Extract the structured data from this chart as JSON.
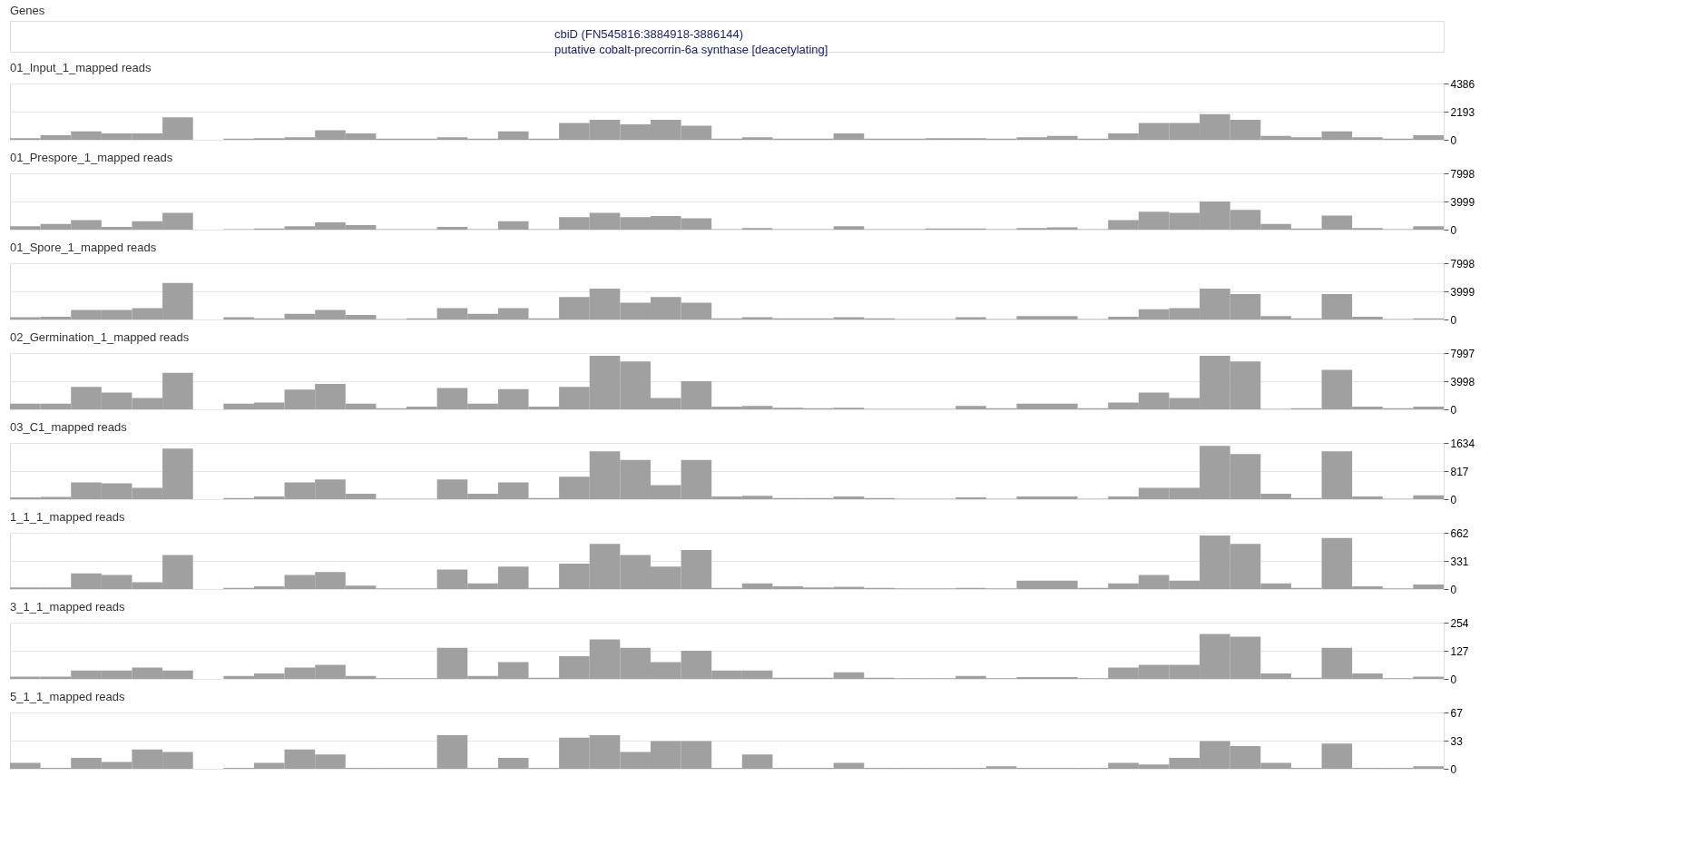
{
  "chart_data": [
    {
      "type": "other",
      "title": "Genes",
      "annotations": [
        "cbiD (FN545816:3884918-3886144)",
        "putative cobalt-precorrin-6a synthase [deacetylating]"
      ]
    },
    {
      "type": "bar",
      "title": "01_Input_1_mapped reads",
      "color": "#a0a0a0",
      "ylim": [
        0,
        4386
      ],
      "yticks": [
        0,
        2193,
        4386
      ],
      "grid": "y",
      "tick_labels": "y",
      "values": [
        130,
        350,
        650,
        500,
        500,
        1750,
        0,
        80,
        130,
        200,
        750,
        500,
        80,
        80,
        200,
        80,
        650,
        80,
        1300,
        1550,
        1200,
        1550,
        1100,
        80,
        200,
        80,
        80,
        500,
        80,
        80,
        130,
        130,
        80,
        200,
        300,
        80,
        500,
        1300,
        1300,
        2000,
        1550,
        300,
        200,
        650,
        200,
        80,
        350
      ]
    },
    {
      "type": "bar",
      "title": "01_Prespore_1_mapped reads",
      "color": "#a0a0a0",
      "ylim": [
        0,
        7998
      ],
      "yticks": [
        0,
        3999,
        7998
      ],
      "grid": "y",
      "tick_labels": "y",
      "values": [
        480,
        800,
        1360,
        400,
        1200,
        2400,
        0,
        80,
        160,
        480,
        1040,
        640,
        80,
        80,
        400,
        80,
        1200,
        80,
        1760,
        2400,
        1760,
        1920,
        1600,
        80,
        240,
        80,
        80,
        480,
        80,
        80,
        160,
        160,
        80,
        240,
        320,
        80,
        1360,
        2560,
        2400,
        4000,
        2800,
        800,
        160,
        2000,
        240,
        80,
        480
      ]
    },
    {
      "type": "bar",
      "title": "01_Spore_1_mapped reads",
      "color": "#a0a0a0",
      "ylim": [
        0,
        7998
      ],
      "yticks": [
        0,
        3999,
        7998
      ],
      "grid": "y",
      "tick_labels": "y",
      "values": [
        320,
        400,
        1360,
        1360,
        1600,
        5200,
        0,
        320,
        160,
        800,
        1360,
        640,
        80,
        160,
        1600,
        800,
        1600,
        160,
        3200,
        4400,
        2400,
        3200,
        2400,
        160,
        320,
        160,
        160,
        320,
        160,
        80,
        80,
        320,
        80,
        480,
        480,
        80,
        400,
        1440,
        1600,
        4400,
        3600,
        480,
        160,
        3600,
        400,
        80,
        160
      ]
    },
    {
      "type": "bar",
      "title": "02_Germination_1_mapped reads",
      "color": "#a0a0a0",
      "ylim": [
        0,
        7997
      ],
      "yticks": [
        0,
        3998,
        7997
      ],
      "grid": "y",
      "tick_labels": "y",
      "values": [
        800,
        800,
        3200,
        2400,
        1600,
        5200,
        0,
        800,
        960,
        2800,
        3600,
        800,
        160,
        400,
        3040,
        800,
        2880,
        400,
        3200,
        7600,
        6800,
        1600,
        4000,
        400,
        480,
        240,
        160,
        240,
        80,
        80,
        80,
        480,
        160,
        800,
        800,
        160,
        960,
        2400,
        1600,
        7600,
        6800,
        80,
        160,
        5600,
        400,
        160,
        400
      ]
    },
    {
      "type": "bar",
      "title": "03_C1_mapped reads",
      "color": "#a0a0a0",
      "ylim": [
        0,
        1634
      ],
      "yticks": [
        0,
        817,
        1634
      ],
      "grid": "y",
      "tick_labels": "y",
      "values": [
        50,
        65,
        490,
        460,
        330,
        1470,
        0,
        33,
        80,
        490,
        570,
        160,
        16,
        16,
        570,
        160,
        490,
        33,
        650,
        1390,
        1140,
        410,
        1140,
        80,
        100,
        33,
        33,
        80,
        33,
        16,
        16,
        50,
        16,
        80,
        80,
        16,
        80,
        330,
        330,
        1550,
        1310,
        160,
        33,
        1390,
        80,
        16,
        110
      ]
    },
    {
      "type": "bar",
      "title": "1_1_1_mapped reads",
      "color": "#a0a0a0",
      "ylim": [
        0,
        662
      ],
      "yticks": [
        0,
        331,
        662
      ],
      "grid": "y",
      "tick_labels": "y",
      "values": [
        20,
        20,
        185,
        165,
        80,
        400,
        0,
        13,
        33,
        165,
        200,
        40,
        7,
        7,
        230,
        66,
        265,
        13,
        300,
        530,
        400,
        265,
        460,
        13,
        66,
        33,
        20,
        26,
        13,
        7,
        7,
        13,
        7,
        100,
        100,
        13,
        66,
        165,
        100,
        630,
        530,
        66,
        13,
        600,
        33,
        7,
        53
      ]
    },
    {
      "type": "bar",
      "title": "3_1_1_mapped reads",
      "color": "#a0a0a0",
      "ylim": [
        0,
        254
      ],
      "yticks": [
        0,
        127,
        254
      ],
      "grid": "y",
      "tick_labels": "y",
      "values": [
        10,
        10,
        38,
        38,
        51,
        38,
        0,
        13,
        25,
        51,
        64,
        13,
        3,
        3,
        140,
        13,
        76,
        5,
        102,
        178,
        140,
        76,
        127,
        38,
        38,
        5,
        5,
        30,
        5,
        3,
        3,
        13,
        3,
        8,
        8,
        3,
        51,
        64,
        64,
        203,
        190,
        25,
        5,
        140,
        25,
        3,
        10
      ]
    },
    {
      "type": "bar",
      "title": "5_1_1_mapped reads",
      "color": "#a0a0a0",
      "ylim": [
        0,
        67
      ],
      "yticks": [
        0,
        33,
        67
      ],
      "grid": "y",
      "tick_labels": "y",
      "values": [
        7,
        1,
        13,
        8,
        23,
        20,
        0,
        1,
        7,
        23,
        17,
        1,
        1,
        1,
        40,
        1,
        13,
        1,
        37,
        40,
        20,
        33,
        33,
        1,
        17,
        1,
        1,
        7,
        1,
        1,
        1,
        1,
        3,
        1,
        1,
        1,
        7,
        5,
        13,
        33,
        27,
        7,
        1,
        30,
        1,
        1,
        3
      ]
    }
  ]
}
